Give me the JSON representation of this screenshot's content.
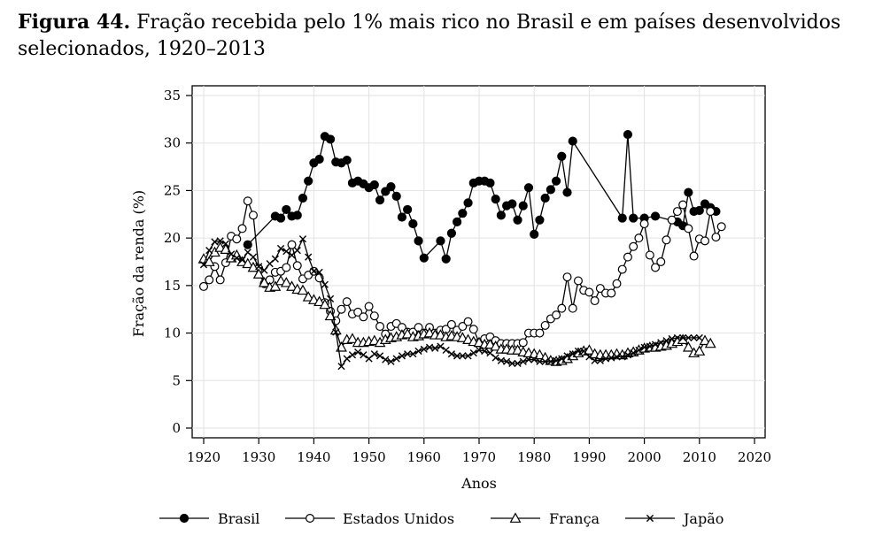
{
  "caption": {
    "label": "Figura 44.",
    "text": "Fração recebida pelo 1% mais rico no Brasil e em países desenvolvidos selecionados, 1920–2013"
  },
  "chart_data": {
    "type": "line",
    "title": "",
    "xlabel": "Anos",
    "ylabel": "Fração da renda (%)",
    "xlim": [
      1920,
      2020
    ],
    "ylim": [
      0,
      35
    ],
    "xticks": [
      1920,
      1930,
      1940,
      1950,
      1960,
      1970,
      1980,
      1990,
      2000,
      2010,
      2020
    ],
    "yticks": [
      0,
      5,
      10,
      15,
      20,
      25,
      30,
      35
    ],
    "grid": true,
    "legend_position": "bottom",
    "series": [
      {
        "name": "Brasil",
        "marker": "filled-circle",
        "x": [
          1928,
          1933,
          1934,
          1935,
          1936,
          1937,
          1938,
          1939,
          1940,
          1941,
          1942,
          1943,
          1944,
          1945,
          1946,
          1947,
          1948,
          1949,
          1950,
          1951,
          1952,
          1953,
          1954,
          1955,
          1956,
          1957,
          1958,
          1959,
          1960,
          1963,
          1964,
          1965,
          1966,
          1967,
          1968,
          1969,
          1970,
          1971,
          1972,
          1973,
          1974,
          1975,
          1976,
          1977,
          1978,
          1979,
          1980,
          1981,
          1982,
          1983,
          1984,
          1985,
          1986,
          1987,
          1996,
          1997,
          1998,
          2000,
          2002,
          2006,
          2007,
          2008,
          2009,
          2010,
          2011,
          2012,
          2013
        ],
        "y": [
          19.3,
          22.3,
          22.1,
          23.0,
          22.3,
          22.4,
          24.2,
          26.0,
          27.9,
          28.3,
          30.7,
          30.4,
          28.0,
          27.9,
          28.2,
          25.8,
          26.0,
          25.7,
          25.3,
          25.6,
          24.0,
          24.9,
          25.4,
          24.4,
          22.2,
          23.0,
          21.5,
          19.7,
          17.9,
          19.7,
          17.8,
          20.5,
          21.7,
          22.6,
          23.7,
          25.8,
          26.0,
          26.0,
          25.8,
          24.1,
          22.4,
          23.4,
          23.6,
          21.9,
          23.4,
          25.3,
          20.4,
          21.9,
          24.2,
          25.1,
          26.0,
          28.6,
          24.8,
          30.2,
          22.1,
          30.9,
          22.1,
          22.1,
          22.3,
          21.7,
          21.3,
          24.8,
          22.8,
          22.9,
          23.6,
          23.2,
          22.8
        ]
      },
      {
        "name": "Estados Unidos",
        "marker": "open-circle",
        "x": [
          1920,
          1921,
          1922,
          1923,
          1924,
          1925,
          1926,
          1927,
          1928,
          1929,
          1930,
          1931,
          1932,
          1933,
          1934,
          1935,
          1936,
          1937,
          1938,
          1939,
          1940,
          1941,
          1942,
          1943,
          1944,
          1945,
          1946,
          1947,
          1948,
          1949,
          1950,
          1951,
          1952,
          1953,
          1954,
          1955,
          1956,
          1957,
          1958,
          1959,
          1960,
          1961,
          1962,
          1963,
          1964,
          1965,
          1966,
          1967,
          1968,
          1969,
          1970,
          1971,
          1972,
          1973,
          1974,
          1975,
          1976,
          1977,
          1978,
          1979,
          1980,
          1981,
          1982,
          1983,
          1984,
          1985,
          1986,
          1987,
          1988,
          1989,
          1990,
          1991,
          1992,
          1993,
          1994,
          1995,
          1996,
          1997,
          1998,
          1999,
          2000,
          2001,
          2002,
          2003,
          2004,
          2005,
          2006,
          2007,
          2008,
          2009,
          2010,
          2011,
          2012,
          2013,
          2014
        ],
        "y": [
          14.9,
          15.6,
          17.0,
          15.6,
          17.4,
          20.2,
          19.9,
          21.0,
          23.9,
          22.4,
          16.8,
          15.2,
          15.6,
          16.4,
          16.5,
          16.9,
          19.3,
          17.1,
          15.7,
          16.1,
          16.5,
          15.8,
          13.2,
          12.3,
          11.3,
          12.5,
          13.3,
          12.0,
          12.2,
          11.7,
          12.8,
          11.8,
          10.7,
          9.9,
          10.7,
          11.0,
          10.6,
          10.1,
          10.1,
          10.6,
          10.0,
          10.6,
          10.0,
          10.3,
          10.4,
          10.9,
          10.3,
          10.7,
          11.2,
          10.4,
          9.0,
          9.4,
          9.6,
          9.2,
          8.9,
          8.9,
          8.9,
          8.9,
          9.0,
          10.0,
          10.0,
          10.0,
          10.8,
          11.5,
          11.9,
          12.6,
          15.9,
          12.6,
          15.5,
          14.5,
          14.3,
          13.4,
          14.7,
          14.2,
          14.2,
          15.2,
          16.7,
          18.0,
          19.1,
          20.0,
          21.5,
          18.2,
          16.9,
          17.5,
          19.8,
          21.9,
          22.8,
          23.5,
          21.0,
          18.1,
          19.9,
          19.7,
          22.8,
          20.1,
          21.2
        ]
      },
      {
        "name": "França",
        "marker": "triangle",
        "x": [
          1920,
          1921,
          1922,
          1923,
          1924,
          1925,
          1926,
          1927,
          1928,
          1929,
          1930,
          1931,
          1932,
          1933,
          1934,
          1935,
          1936,
          1937,
          1938,
          1939,
          1940,
          1941,
          1942,
          1943,
          1944,
          1945,
          1946,
          1947,
          1948,
          1949,
          1950,
          1951,
          1952,
          1953,
          1954,
          1955,
          1956,
          1957,
          1958,
          1959,
          1960,
          1961,
          1962,
          1963,
          1964,
          1965,
          1966,
          1967,
          1968,
          1969,
          1970,
          1971,
          1972,
          1973,
          1974,
          1975,
          1976,
          1977,
          1978,
          1979,
          1980,
          1981,
          1982,
          1983,
          1984,
          1985,
          1986,
          1987,
          1988,
          1989,
          1990,
          1991,
          1992,
          1993,
          1994,
          1995,
          1996,
          1997,
          1998,
          1999,
          2000,
          2001,
          2002,
          2003,
          2004,
          2005,
          2006,
          2007,
          2008,
          2009,
          2010,
          2011,
          2012
        ],
        "y": [
          17.8,
          17.5,
          18.5,
          19.0,
          18.8,
          17.9,
          18.2,
          17.5,
          17.3,
          16.9,
          16.2,
          15.3,
          14.8,
          14.9,
          15.5,
          15.3,
          14.9,
          14.6,
          14.5,
          13.8,
          13.5,
          13.3,
          13.0,
          11.8,
          10.3,
          8.5,
          9.3,
          9.4,
          9.0,
          9.0,
          9.1,
          9.2,
          9.0,
          9.3,
          9.5,
          9.6,
          9.8,
          9.9,
          9.6,
          9.7,
          9.9,
          10.0,
          9.8,
          9.8,
          9.6,
          9.7,
          9.6,
          9.5,
          9.3,
          9.1,
          9.0,
          8.8,
          8.8,
          8.6,
          8.3,
          8.3,
          8.2,
          8.2,
          8.0,
          7.9,
          7.8,
          7.7,
          7.4,
          7.1,
          7.0,
          7.1,
          7.3,
          7.6,
          7.9,
          8.1,
          8.2,
          7.8,
          7.7,
          7.7,
          7.7,
          7.8,
          7.7,
          7.9,
          8.0,
          8.2,
          8.4,
          8.5,
          8.5,
          8.6,
          8.7,
          8.9,
          9.1,
          9.3,
          8.5,
          7.9,
          8.1,
          9.2,
          8.9
        ]
      },
      {
        "name": "Japão",
        "marker": "x",
        "x": [
          1920,
          1921,
          1922,
          1923,
          1924,
          1925,
          1926,
          1927,
          1928,
          1929,
          1930,
          1931,
          1932,
          1933,
          1934,
          1935,
          1936,
          1937,
          1938,
          1939,
          1940,
          1941,
          1942,
          1943,
          1944,
          1945,
          1946,
          1947,
          1948,
          1949,
          1950,
          1951,
          1952,
          1953,
          1954,
          1955,
          1956,
          1957,
          1958,
          1959,
          1960,
          1961,
          1962,
          1963,
          1964,
          1965,
          1966,
          1967,
          1968,
          1969,
          1970,
          1971,
          1972,
          1973,
          1974,
          1975,
          1976,
          1977,
          1978,
          1979,
          1980,
          1981,
          1982,
          1983,
          1984,
          1985,
          1986,
          1987,
          1988,
          1989,
          1990,
          1991,
          1992,
          1993,
          1994,
          1995,
          1996,
          1997,
          1998,
          1999,
          2000,
          2001,
          2002,
          2003,
          2004,
          2005,
          2006,
          2007,
          2008,
          2009,
          2010
        ],
        "y": [
          17.2,
          18.7,
          19.6,
          19.7,
          19.4,
          18.3,
          17.9,
          17.7,
          18.5,
          18.0,
          17.0,
          16.6,
          17.3,
          17.8,
          18.9,
          18.6,
          18.2,
          18.7,
          19.9,
          18.0,
          16.5,
          16.4,
          15.1,
          13.6,
          10.1,
          6.5,
          7.3,
          7.7,
          8.0,
          7.7,
          7.3,
          7.8,
          7.6,
          7.2,
          7.0,
          7.3,
          7.6,
          7.8,
          7.8,
          8.1,
          8.3,
          8.5,
          8.4,
          8.6,
          8.2,
          7.8,
          7.6,
          7.6,
          7.6,
          7.9,
          8.2,
          8.1,
          7.9,
          7.4,
          7.1,
          7.0,
          6.8,
          6.8,
          7.0,
          7.2,
          7.2,
          7.0,
          7.0,
          7.0,
          7.1,
          7.3,
          7.6,
          7.8,
          8.1,
          8.1,
          7.5,
          7.1,
          7.1,
          7.3,
          7.4,
          7.5,
          7.5,
          7.7,
          7.9,
          8.2,
          8.5,
          8.6,
          8.8,
          9.0,
          9.2,
          9.4,
          9.5,
          9.5,
          9.5,
          9.5,
          9.5
        ]
      }
    ]
  }
}
